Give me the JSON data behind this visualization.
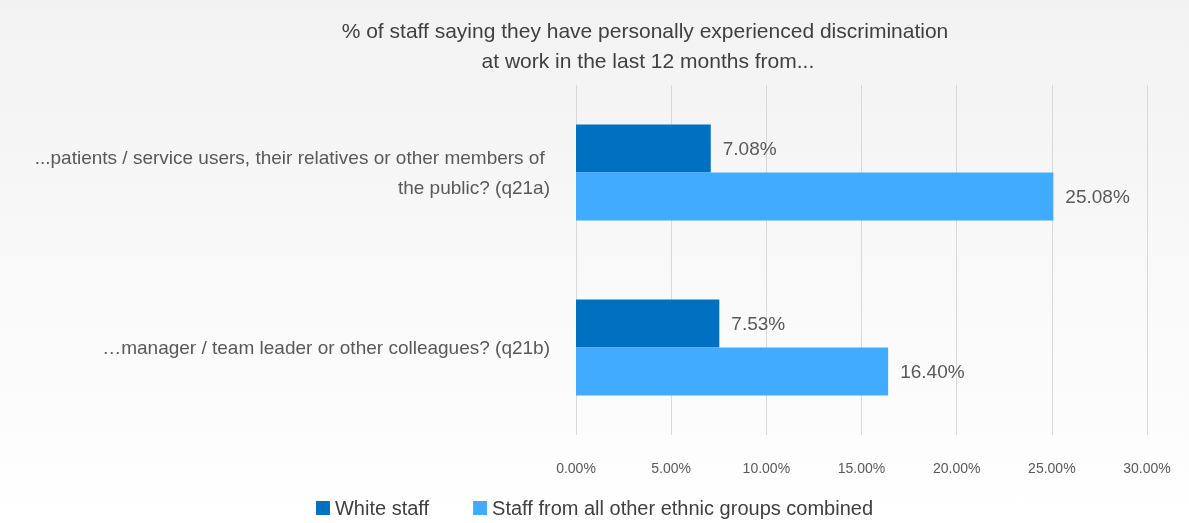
{
  "chart_data": {
    "type": "bar",
    "orientation": "horizontal",
    "title": "% of staff saying they have personally experienced discrimination at work in the last 12 months from...",
    "categories": [
      "...patients / service users, their relatives or other members of the public? (q21a)",
      "…manager / team leader or other colleagues? (q21b)"
    ],
    "series": [
      {
        "name": "White staff",
        "color": "#0070c0",
        "values": [
          7.08,
          7.53
        ],
        "value_labels": [
          "7.08%",
          "7.53%"
        ]
      },
      {
        "name": "Staff from all other ethnic groups combined",
        "color": "#41abff",
        "values": [
          25.08,
          16.4
        ],
        "value_labels": [
          "25.08%",
          "16.40%"
        ]
      }
    ],
    "xlim": [
      0,
      30
    ],
    "xticks": [
      {
        "value": 0,
        "label": "0.00%"
      },
      {
        "value": 5,
        "label": "5.00%"
      },
      {
        "value": 10,
        "label": "10.00%"
      },
      {
        "value": 15,
        "label": "15.00%"
      },
      {
        "value": 20,
        "label": "20.00%"
      },
      {
        "value": 25,
        "label": "25.00%"
      },
      {
        "value": 30,
        "label": "30.00%"
      }
    ],
    "grid": "x",
    "legend": "bottom"
  }
}
